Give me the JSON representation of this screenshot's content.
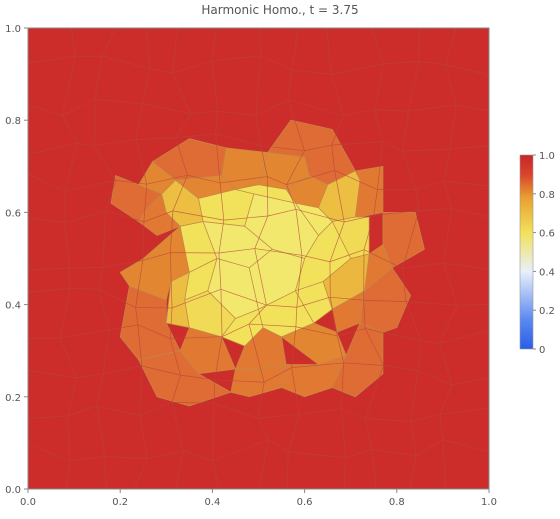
{
  "chart_data": {
    "type": "heatmap",
    "title": "Harmonic Homo., t = 3.75",
    "xlabel": "",
    "ylabel": "",
    "xlim": [
      0,
      1
    ],
    "ylim": [
      0,
      1
    ],
    "x_ticks": [
      "0.0",
      "0.2",
      "0.4",
      "0.6",
      "0.8",
      "1.0"
    ],
    "y_ticks": [
      "0.0",
      "0.2",
      "0.4",
      "0.6",
      "0.8",
      "1.0"
    ],
    "colorbar": {
      "range": [
        0,
        1
      ],
      "ticks": [
        "0",
        "0.2",
        "0.4",
        "0.6",
        "0.8",
        "1.0"
      ],
      "colors": [
        "#2a5ee8",
        "#5b88f0",
        "#e8f0fb",
        "#f2e15a",
        "#e8a030",
        "#d8432c",
        "#c8262a"
      ]
    },
    "background_value": 0.98,
    "cells": [
      {
        "name": "inner-1",
        "value": 0.5,
        "points": [
          [
            0.49,
            0.64
          ],
          [
            0.58,
            0.62
          ],
          [
            0.63,
            0.55
          ],
          [
            0.6,
            0.5
          ],
          [
            0.53,
            0.52
          ],
          [
            0.47,
            0.57
          ]
        ]
      },
      {
        "name": "inner-2",
        "value": 0.5,
        "points": [
          [
            0.38,
            0.58
          ],
          [
            0.47,
            0.57
          ],
          [
            0.53,
            0.52
          ],
          [
            0.48,
            0.48
          ],
          [
            0.41,
            0.5
          ]
        ]
      },
      {
        "name": "inner-3",
        "value": 0.5,
        "points": [
          [
            0.41,
            0.5
          ],
          [
            0.48,
            0.48
          ],
          [
            0.5,
            0.39
          ],
          [
            0.45,
            0.37
          ],
          [
            0.39,
            0.43
          ]
        ]
      },
      {
        "name": "inner-4",
        "value": 0.5,
        "points": [
          [
            0.48,
            0.48
          ],
          [
            0.53,
            0.52
          ],
          [
            0.6,
            0.5
          ],
          [
            0.58,
            0.43
          ],
          [
            0.5,
            0.39
          ]
        ]
      },
      {
        "name": "inner-5",
        "value": 0.52,
        "points": [
          [
            0.58,
            0.62
          ],
          [
            0.63,
            0.61
          ],
          [
            0.66,
            0.58
          ],
          [
            0.63,
            0.55
          ]
        ]
      },
      {
        "name": "mid-1",
        "value": 0.6,
        "points": [
          [
            0.37,
            0.63
          ],
          [
            0.45,
            0.65
          ],
          [
            0.49,
            0.64
          ],
          [
            0.47,
            0.57
          ],
          [
            0.38,
            0.58
          ]
        ]
      },
      {
        "name": "mid-2",
        "value": 0.6,
        "points": [
          [
            0.45,
            0.65
          ],
          [
            0.5,
            0.66
          ],
          [
            0.56,
            0.65
          ],
          [
            0.58,
            0.62
          ],
          [
            0.49,
            0.64
          ]
        ]
      },
      {
        "name": "mid-3",
        "value": 0.6,
        "points": [
          [
            0.33,
            0.57
          ],
          [
            0.38,
            0.58
          ],
          [
            0.41,
            0.5
          ],
          [
            0.35,
            0.47
          ]
        ]
      },
      {
        "name": "mid-4",
        "value": 0.6,
        "points": [
          [
            0.35,
            0.47
          ],
          [
            0.41,
            0.5
          ],
          [
            0.39,
            0.43
          ],
          [
            0.34,
            0.41
          ]
        ]
      },
      {
        "name": "mid-5",
        "value": 0.62,
        "points": [
          [
            0.34,
            0.41
          ],
          [
            0.39,
            0.43
          ],
          [
            0.45,
            0.37
          ],
          [
            0.42,
            0.33
          ],
          [
            0.35,
            0.35
          ]
        ]
      },
      {
        "name": "mid-6",
        "value": 0.6,
        "points": [
          [
            0.45,
            0.37
          ],
          [
            0.5,
            0.39
          ],
          [
            0.51,
            0.35
          ],
          [
            0.47,
            0.31
          ],
          [
            0.42,
            0.33
          ]
        ]
      },
      {
        "name": "mid-7",
        "value": 0.6,
        "points": [
          [
            0.5,
            0.39
          ],
          [
            0.58,
            0.43
          ],
          [
            0.62,
            0.36
          ],
          [
            0.55,
            0.33
          ],
          [
            0.51,
            0.35
          ]
        ]
      },
      {
        "name": "mid-8",
        "value": 0.6,
        "points": [
          [
            0.58,
            0.43
          ],
          [
            0.64,
            0.45
          ],
          [
            0.66,
            0.39
          ],
          [
            0.62,
            0.36
          ]
        ]
      },
      {
        "name": "mid-9",
        "value": 0.6,
        "points": [
          [
            0.6,
            0.5
          ],
          [
            0.63,
            0.55
          ],
          [
            0.66,
            0.58
          ],
          [
            0.7,
            0.5
          ],
          [
            0.64,
            0.45
          ],
          [
            0.58,
            0.43
          ]
        ]
      },
      {
        "name": "mid-10",
        "value": 0.62,
        "points": [
          [
            0.66,
            0.58
          ],
          [
            0.71,
            0.59
          ],
          [
            0.74,
            0.59
          ],
          [
            0.74,
            0.51
          ],
          [
            0.7,
            0.5
          ]
        ]
      },
      {
        "name": "outer-1",
        "value": 0.7,
        "points": [
          [
            0.32,
            0.67
          ],
          [
            0.37,
            0.63
          ],
          [
            0.38,
            0.58
          ],
          [
            0.33,
            0.57
          ],
          [
            0.3,
            0.6
          ],
          [
            0.29,
            0.64
          ]
        ]
      },
      {
        "name": "outer-2",
        "value": 0.7,
        "points": [
          [
            0.65,
            0.66
          ],
          [
            0.71,
            0.69
          ],
          [
            0.72,
            0.67
          ],
          [
            0.71,
            0.59
          ],
          [
            0.66,
            0.58
          ],
          [
            0.63,
            0.61
          ]
        ]
      },
      {
        "name": "outer-3",
        "value": 0.72,
        "points": [
          [
            0.64,
            0.45
          ],
          [
            0.7,
            0.5
          ],
          [
            0.74,
            0.51
          ],
          [
            0.73,
            0.43
          ],
          [
            0.66,
            0.39
          ]
        ]
      },
      {
        "name": "outer-4",
        "value": 0.7,
        "points": [
          [
            0.3,
            0.36
          ],
          [
            0.35,
            0.35
          ],
          [
            0.34,
            0.41
          ],
          [
            0.35,
            0.47
          ],
          [
            0.31,
            0.45
          ]
        ]
      },
      {
        "name": "orange-1",
        "value": 0.82,
        "points": [
          [
            0.43,
            0.74
          ],
          [
            0.52,
            0.73
          ],
          [
            0.51,
            0.69
          ],
          [
            0.5,
            0.66
          ],
          [
            0.45,
            0.65
          ],
          [
            0.42,
            0.68
          ]
        ]
      },
      {
        "name": "orange-2",
        "value": 0.82,
        "points": [
          [
            0.32,
            0.67
          ],
          [
            0.42,
            0.68
          ],
          [
            0.45,
            0.65
          ],
          [
            0.37,
            0.63
          ]
        ]
      },
      {
        "name": "orange-3",
        "value": 0.82,
        "points": [
          [
            0.27,
            0.71
          ],
          [
            0.32,
            0.67
          ],
          [
            0.29,
            0.64
          ],
          [
            0.24,
            0.66
          ]
        ]
      },
      {
        "name": "orange-4",
        "value": 0.84,
        "points": [
          [
            0.26,
            0.61
          ],
          [
            0.29,
            0.64
          ],
          [
            0.3,
            0.6
          ],
          [
            0.33,
            0.57
          ],
          [
            0.28,
            0.55
          ],
          [
            0.24,
            0.58
          ]
        ]
      },
      {
        "name": "orange-5",
        "value": 0.82,
        "points": [
          [
            0.2,
            0.47
          ],
          [
            0.25,
            0.5
          ],
          [
            0.33,
            0.57
          ],
          [
            0.35,
            0.47
          ],
          [
            0.31,
            0.45
          ],
          [
            0.3,
            0.41
          ],
          [
            0.22,
            0.44
          ]
        ]
      },
      {
        "name": "orange-6",
        "value": 0.82,
        "points": [
          [
            0.52,
            0.73
          ],
          [
            0.6,
            0.72
          ],
          [
            0.61,
            0.68
          ],
          [
            0.56,
            0.65
          ],
          [
            0.5,
            0.66
          ],
          [
            0.51,
            0.69
          ]
        ]
      },
      {
        "name": "orange-7",
        "value": 0.82,
        "points": [
          [
            0.61,
            0.68
          ],
          [
            0.65,
            0.66
          ],
          [
            0.63,
            0.61
          ],
          [
            0.58,
            0.62
          ],
          [
            0.56,
            0.65
          ]
        ]
      },
      {
        "name": "orange-8",
        "value": 0.84,
        "points": [
          [
            0.65,
            0.66
          ],
          [
            0.71,
            0.69
          ],
          [
            0.77,
            0.7
          ],
          [
            0.77,
            0.6
          ],
          [
            0.72,
            0.59
          ],
          [
            0.71,
            0.59
          ]
        ]
      },
      {
        "name": "orange-9",
        "value": 0.84,
        "points": [
          [
            0.74,
            0.51
          ],
          [
            0.77,
            0.53
          ],
          [
            0.79,
            0.48
          ],
          [
            0.73,
            0.43
          ]
        ]
      },
      {
        "name": "orange-10",
        "value": 0.84,
        "points": [
          [
            0.66,
            0.39
          ],
          [
            0.73,
            0.43
          ],
          [
            0.72,
            0.36
          ],
          [
            0.67,
            0.34
          ]
        ]
      },
      {
        "name": "orange-11",
        "value": 0.82,
        "points": [
          [
            0.62,
            0.36
          ],
          [
            0.67,
            0.34
          ],
          [
            0.69,
            0.29
          ],
          [
            0.63,
            0.27
          ],
          [
            0.55,
            0.33
          ]
        ]
      },
      {
        "name": "orange-12",
        "value": 0.84,
        "points": [
          [
            0.47,
            0.31
          ],
          [
            0.51,
            0.35
          ],
          [
            0.55,
            0.33
          ],
          [
            0.56,
            0.27
          ],
          [
            0.5,
            0.26
          ],
          [
            0.45,
            0.26
          ]
        ]
      },
      {
        "name": "orange-13",
        "value": 0.84,
        "points": [
          [
            0.35,
            0.35
          ],
          [
            0.42,
            0.33
          ],
          [
            0.45,
            0.26
          ],
          [
            0.37,
            0.25
          ],
          [
            0.33,
            0.3
          ]
        ]
      },
      {
        "name": "orange-14",
        "value": 0.84,
        "points": [
          [
            0.45,
            0.26
          ],
          [
            0.5,
            0.26
          ],
          [
            0.56,
            0.27
          ],
          [
            0.55,
            0.22
          ],
          [
            0.48,
            0.2
          ],
          [
            0.44,
            0.21
          ]
        ]
      },
      {
        "name": "orange-15",
        "value": 0.84,
        "points": [
          [
            0.56,
            0.27
          ],
          [
            0.63,
            0.27
          ],
          [
            0.69,
            0.29
          ],
          [
            0.66,
            0.22
          ],
          [
            0.6,
            0.2
          ],
          [
            0.55,
            0.22
          ]
        ]
      },
      {
        "name": "orange-16",
        "value": 0.86,
        "points": [
          [
            0.22,
            0.44
          ],
          [
            0.3,
            0.41
          ],
          [
            0.3,
            0.36
          ],
          [
            0.33,
            0.3
          ],
          [
            0.24,
            0.28
          ],
          [
            0.2,
            0.33
          ]
        ]
      },
      {
        "name": "orange-17",
        "value": 0.86,
        "points": [
          [
            0.33,
            0.3
          ],
          [
            0.37,
            0.25
          ],
          [
            0.44,
            0.21
          ],
          [
            0.35,
            0.18
          ],
          [
            0.28,
            0.2
          ],
          [
            0.24,
            0.28
          ]
        ]
      },
      {
        "name": "orange-18",
        "value": 0.86,
        "points": [
          [
            0.66,
            0.22
          ],
          [
            0.69,
            0.29
          ],
          [
            0.72,
            0.36
          ],
          [
            0.77,
            0.34
          ],
          [
            0.77,
            0.25
          ],
          [
            0.71,
            0.2
          ]
        ]
      },
      {
        "name": "orange-19",
        "value": 0.86,
        "points": [
          [
            0.72,
            0.36
          ],
          [
            0.73,
            0.43
          ],
          [
            0.79,
            0.48
          ],
          [
            0.83,
            0.42
          ],
          [
            0.8,
            0.35
          ],
          [
            0.77,
            0.34
          ]
        ]
      },
      {
        "name": "orange-20",
        "value": 0.86,
        "points": [
          [
            0.77,
            0.6
          ],
          [
            0.77,
            0.53
          ],
          [
            0.79,
            0.48
          ],
          [
            0.86,
            0.52
          ],
          [
            0.84,
            0.6
          ]
        ]
      },
      {
        "name": "orange-21",
        "value": 0.86,
        "points": [
          [
            0.24,
            0.66
          ],
          [
            0.29,
            0.64
          ],
          [
            0.26,
            0.61
          ],
          [
            0.24,
            0.58
          ],
          [
            0.18,
            0.62
          ],
          [
            0.19,
            0.68
          ]
        ]
      },
      {
        "name": "orange-22",
        "value": 0.86,
        "points": [
          [
            0.27,
            0.71
          ],
          [
            0.35,
            0.76
          ],
          [
            0.43,
            0.74
          ],
          [
            0.42,
            0.68
          ],
          [
            0.32,
            0.67
          ]
        ]
      },
      {
        "name": "orange-23",
        "value": 0.86,
        "points": [
          [
            0.52,
            0.73
          ],
          [
            0.57,
            0.8
          ],
          [
            0.66,
            0.78
          ],
          [
            0.71,
            0.69
          ],
          [
            0.65,
            0.66
          ],
          [
            0.61,
            0.68
          ],
          [
            0.6,
            0.72
          ]
        ]
      }
    ]
  }
}
